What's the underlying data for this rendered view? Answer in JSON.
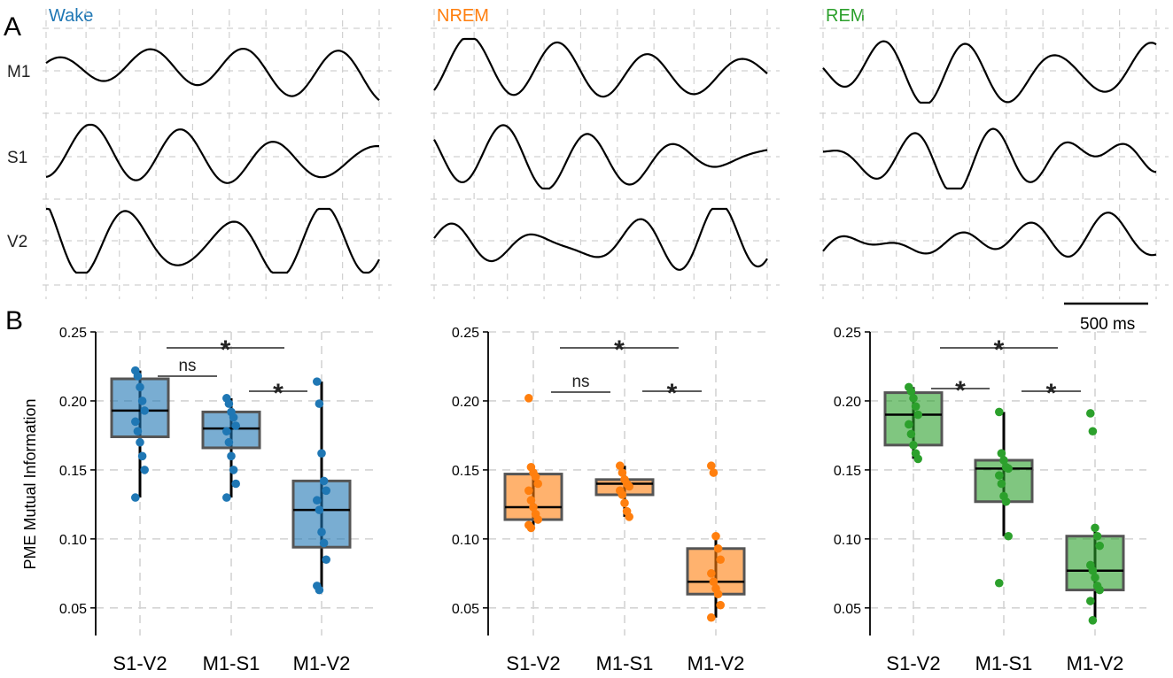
{
  "panel_labels": {
    "a": "A",
    "b": "B"
  },
  "states": [
    {
      "key": "wake",
      "title": "Wake",
      "color": "#1f77b4"
    },
    {
      "key": "nrem",
      "title": "NREM",
      "color": "#ff7f0e"
    },
    {
      "key": "rem",
      "title": "REM",
      "color": "#2ca02c"
    }
  ],
  "channels": [
    "M1",
    "S1",
    "V2"
  ],
  "scale_bar": {
    "label": "500 ms",
    "duration_ms": 500
  },
  "chart_data": [
    {
      "type": "box",
      "state": "Wake",
      "color": "#1f77b4",
      "ylabel": "PME Mutual Information",
      "ylim": [
        0.03,
        0.25
      ],
      "yticks": [
        "0.05",
        "0.10",
        "0.15",
        "0.20",
        "0.25"
      ],
      "categories": [
        "S1-V2",
        "M1-S1",
        "M1-V2"
      ],
      "boxes": [
        {
          "q1": 0.174,
          "median": 0.193,
          "q3": 0.216,
          "whisker_low": 0.13,
          "whisker_high": 0.222,
          "points": [
            0.222,
            0.218,
            0.21,
            0.2,
            0.193,
            0.185,
            0.178,
            0.17,
            0.16,
            0.15,
            0.13
          ]
        },
        {
          "q1": 0.166,
          "median": 0.18,
          "q3": 0.192,
          "whisker_low": 0.13,
          "whisker_high": 0.202,
          "points": [
            0.202,
            0.198,
            0.192,
            0.188,
            0.182,
            0.178,
            0.17,
            0.16,
            0.15,
            0.14,
            0.13
          ]
        },
        {
          "q1": 0.094,
          "median": 0.121,
          "q3": 0.142,
          "whisker_low": 0.063,
          "whisker_high": 0.214,
          "points": [
            0.214,
            0.198,
            0.162,
            0.142,
            0.135,
            0.128,
            0.121,
            0.105,
            0.097,
            0.085,
            0.066,
            0.063
          ]
        }
      ],
      "comparisons": [
        {
          "pair": [
            "S1-V2",
            "M1-S1"
          ],
          "label": "ns"
        },
        {
          "pair": [
            "M1-S1",
            "M1-V2"
          ],
          "label": "*"
        },
        {
          "pair": [
            "S1-V2",
            "M1-V2"
          ],
          "label": "*"
        }
      ]
    },
    {
      "type": "box",
      "state": "NREM",
      "color": "#ff7f0e",
      "ylabel": "",
      "ylim": [
        0.03,
        0.25
      ],
      "yticks": [
        "0.05",
        "0.10",
        "0.15",
        "0.20",
        "0.25"
      ],
      "categories": [
        "S1-V2",
        "M1-S1",
        "M1-V2"
      ],
      "boxes": [
        {
          "q1": 0.114,
          "median": 0.123,
          "q3": 0.147,
          "whisker_low": 0.108,
          "whisker_high": 0.152,
          "points": [
            0.202,
            0.152,
            0.148,
            0.145,
            0.14,
            0.135,
            0.128,
            0.123,
            0.118,
            0.114,
            0.11,
            0.108
          ]
        },
        {
          "q1": 0.132,
          "median": 0.14,
          "q3": 0.143,
          "whisker_low": 0.116,
          "whisker_high": 0.153,
          "points": [
            0.153,
            0.148,
            0.143,
            0.14,
            0.138,
            0.135,
            0.132,
            0.126,
            0.12,
            0.116
          ]
        },
        {
          "q1": 0.06,
          "median": 0.069,
          "q3": 0.093,
          "whisker_low": 0.043,
          "whisker_high": 0.102,
          "points": [
            0.153,
            0.148,
            0.102,
            0.093,
            0.085,
            0.075,
            0.069,
            0.064,
            0.06,
            0.052,
            0.043
          ]
        }
      ],
      "comparisons": [
        {
          "pair": [
            "S1-V2",
            "M1-S1"
          ],
          "label": "ns"
        },
        {
          "pair": [
            "M1-S1",
            "M1-V2"
          ],
          "label": "*"
        },
        {
          "pair": [
            "S1-V2",
            "M1-V2"
          ],
          "label": "*"
        }
      ]
    },
    {
      "type": "box",
      "state": "REM",
      "color": "#2ca02c",
      "ylabel": "",
      "ylim": [
        0.03,
        0.25
      ],
      "yticks": [
        "0.05",
        "0.10",
        "0.15",
        "0.20",
        "0.25"
      ],
      "categories": [
        "S1-V2",
        "M1-S1",
        "M1-V2"
      ],
      "boxes": [
        {
          "q1": 0.168,
          "median": 0.19,
          "q3": 0.206,
          "whisker_low": 0.158,
          "whisker_high": 0.21,
          "points": [
            0.21,
            0.207,
            0.202,
            0.196,
            0.19,
            0.183,
            0.176,
            0.168,
            0.162,
            0.158
          ]
        },
        {
          "q1": 0.127,
          "median": 0.151,
          "q3": 0.157,
          "whisker_low": 0.102,
          "whisker_high": 0.192,
          "points": [
            0.192,
            0.162,
            0.157,
            0.152,
            0.151,
            0.146,
            0.14,
            0.131,
            0.127,
            0.102,
            0.068
          ]
        },
        {
          "q1": 0.063,
          "median": 0.077,
          "q3": 0.102,
          "whisker_low": 0.041,
          "whisker_high": 0.108,
          "points": [
            0.191,
            0.178,
            0.108,
            0.102,
            0.095,
            0.081,
            0.077,
            0.072,
            0.066,
            0.063,
            0.055,
            0.041
          ]
        }
      ],
      "comparisons": [
        {
          "pair": [
            "S1-V2",
            "M1-S1"
          ],
          "label": "*"
        },
        {
          "pair": [
            "M1-S1",
            "M1-V2"
          ],
          "label": "*"
        },
        {
          "pair": [
            "S1-V2",
            "M1-V2"
          ],
          "label": "*"
        }
      ]
    }
  ]
}
